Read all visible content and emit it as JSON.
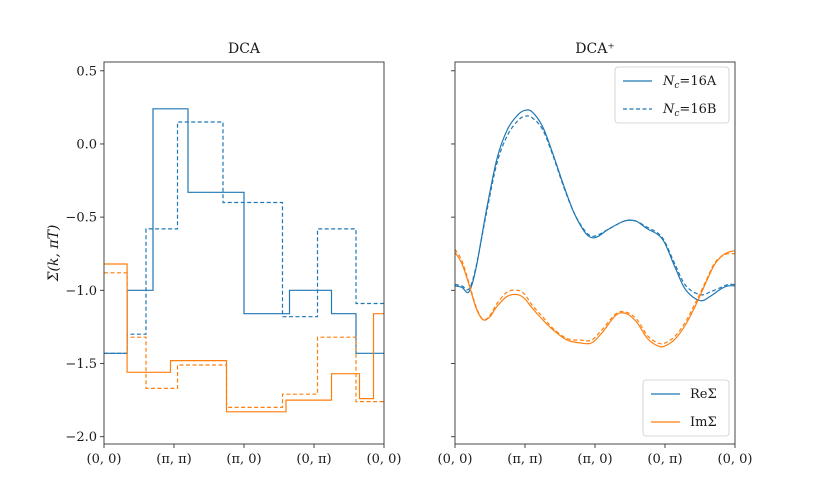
{
  "chart_data": [
    {
      "type": "line",
      "title": "DCA",
      "ylabel": "Σ(k, πT)",
      "xlabel": "",
      "x_ticks": [
        "(0, 0)",
        "(π, π)",
        "(π, 0)",
        "(0, π)",
        "(0, 0)"
      ],
      "x_tick_positions": [
        0,
        1,
        2,
        3,
        4
      ],
      "y_ticks": [
        "0.5",
        "0.0",
        "−0.5",
        "−1.0",
        "−1.5",
        "−2.0"
      ],
      "y_tick_values": [
        0.5,
        0.0,
        -0.5,
        -1.0,
        -1.5,
        -2.0
      ],
      "xlim": [
        0,
        4
      ],
      "ylim": [
        -2.05,
        0.56
      ],
      "grid": false,
      "series": [
        {
          "group": "ReΣ",
          "style": "solid",
          "color": "#1f77b4",
          "step": true,
          "x": [
            0,
            0.33,
            0.33,
            0.7,
            0.7,
            1.2,
            1.2,
            2.0,
            2.0,
            2.65,
            2.65,
            3.25,
            3.25,
            3.6,
            3.6,
            4.0
          ],
          "y": [
            -1.43,
            -1.43,
            -1.0,
            -1.0,
            0.24,
            0.24,
            -0.33,
            -0.33,
            -1.16,
            -1.16,
            -1.0,
            -1.0,
            -1.16,
            -1.16,
            -1.43,
            -1.43
          ]
        },
        {
          "group": "ReΣ",
          "style": "dashed",
          "color": "#1f77b4",
          "step": true,
          "x": [
            0,
            0.33,
            0.33,
            0.6,
            0.6,
            1.05,
            1.05,
            1.7,
            1.7,
            2.55,
            2.55,
            3.05,
            3.05,
            3.6,
            3.6,
            4.0
          ],
          "y": [
            -1.43,
            -1.43,
            -1.3,
            -1.3,
            -0.58,
            -0.58,
            0.15,
            0.15,
            -0.4,
            -0.4,
            -1.18,
            -1.18,
            -0.58,
            -0.58,
            -1.09,
            -1.09
          ]
        },
        {
          "group": "ImΣ",
          "style": "solid",
          "color": "#ff7f0e",
          "step": true,
          "x": [
            0,
            0.33,
            0.33,
            0.95,
            0.95,
            1.75,
            1.75,
            2.6,
            2.6,
            3.25,
            3.25,
            3.65,
            3.65,
            3.85,
            3.85,
            4.0
          ],
          "y": [
            -0.82,
            -0.82,
            -1.56,
            -1.56,
            -1.48,
            -1.48,
            -1.83,
            -1.83,
            -1.75,
            -1.75,
            -1.57,
            -1.57,
            -1.74,
            -1.74,
            -1.16,
            -1.16
          ]
        },
        {
          "group": "ImΣ",
          "style": "dashed",
          "color": "#ff7f0e",
          "step": true,
          "x": [
            0,
            0.33,
            0.33,
            0.6,
            0.6,
            1.05,
            1.05,
            1.75,
            1.75,
            2.55,
            2.55,
            3.05,
            3.05,
            3.6,
            3.6,
            4.0
          ],
          "y": [
            -0.88,
            -0.88,
            -1.32,
            -1.32,
            -1.67,
            -1.67,
            -1.51,
            -1.51,
            -1.8,
            -1.8,
            -1.71,
            -1.71,
            -1.32,
            -1.32,
            -1.76,
            -1.76
          ]
        }
      ]
    },
    {
      "type": "line",
      "title": "DCA⁺",
      "xlabel": "",
      "ylabel": "",
      "x_ticks": [
        "(0, 0)",
        "(π, π)",
        "(π, 0)",
        "(0, π)",
        "(0, 0)"
      ],
      "x_tick_positions": [
        0,
        1,
        2,
        3,
        4
      ],
      "xlim": [
        0,
        4
      ],
      "ylim": [
        -2.05,
        0.56
      ],
      "grid": false,
      "legends": [
        {
          "position": "upper-right",
          "entries": [
            {
              "label_main": "N",
              "label_sub": "c",
              "label_rest": "=16A",
              "style": "solid",
              "color": "#1f77b4"
            },
            {
              "label_main": "N",
              "label_sub": "c",
              "label_rest": "=16B",
              "style": "dashed",
              "color": "#1f77b4"
            }
          ]
        },
        {
          "position": "lower-right",
          "entries": [
            {
              "label": "ReΣ",
              "style": "solid",
              "color": "#1f77b4"
            },
            {
              "label": "ImΣ",
              "style": "solid",
              "color": "#ff7f0e"
            }
          ]
        }
      ],
      "series": [
        {
          "group": "ReΣ",
          "style": "solid",
          "color": "#1f77b4",
          "x": [
            0,
            0.1,
            0.2,
            0.3,
            0.45,
            0.6,
            0.75,
            0.9,
            1.0,
            1.1,
            1.25,
            1.4,
            1.55,
            1.7,
            1.85,
            1.95,
            2.05,
            2.2,
            2.4,
            2.5,
            2.6,
            2.75,
            2.9,
            3.0,
            3.15,
            3.3,
            3.5,
            3.65,
            3.8,
            3.9,
            4.0
          ],
          "y": [
            -0.97,
            -0.98,
            -1.01,
            -0.85,
            -0.45,
            -0.1,
            0.1,
            0.2,
            0.23,
            0.22,
            0.12,
            -0.07,
            -0.28,
            -0.47,
            -0.6,
            -0.64,
            -0.63,
            -0.58,
            -0.53,
            -0.52,
            -0.53,
            -0.58,
            -0.62,
            -0.68,
            -0.85,
            -1.0,
            -1.07,
            -1.04,
            -0.99,
            -0.97,
            -0.97
          ]
        },
        {
          "group": "ReΣ",
          "style": "dashed",
          "color": "#1f77b4",
          "x": [
            0,
            0.1,
            0.2,
            0.3,
            0.45,
            0.6,
            0.75,
            0.9,
            1.0,
            1.1,
            1.25,
            1.4,
            1.55,
            1.7,
            1.85,
            1.95,
            2.05,
            2.2,
            2.4,
            2.5,
            2.6,
            2.75,
            2.9,
            3.0,
            3.15,
            3.3,
            3.5,
            3.65,
            3.8,
            3.9,
            4.0
          ],
          "y": [
            -0.96,
            -0.97,
            -0.99,
            -0.84,
            -0.47,
            -0.13,
            0.06,
            0.16,
            0.19,
            0.18,
            0.1,
            -0.08,
            -0.29,
            -0.47,
            -0.59,
            -0.63,
            -0.62,
            -0.58,
            -0.53,
            -0.52,
            -0.53,
            -0.57,
            -0.61,
            -0.67,
            -0.83,
            -0.97,
            -1.03,
            -1.01,
            -0.98,
            -0.96,
            -0.96
          ]
        },
        {
          "group": "ImΣ",
          "style": "solid",
          "color": "#ff7f0e",
          "x": [
            0,
            0.1,
            0.2,
            0.3,
            0.4,
            0.5,
            0.6,
            0.75,
            0.9,
            1.0,
            1.1,
            1.25,
            1.4,
            1.6,
            1.8,
            1.95,
            2.1,
            2.3,
            2.45,
            2.6,
            2.75,
            2.9,
            3.0,
            3.15,
            3.3,
            3.45,
            3.6,
            3.7,
            3.8,
            3.9,
            4.0
          ],
          "y": [
            -0.74,
            -0.82,
            -0.96,
            -1.12,
            -1.2,
            -1.18,
            -1.11,
            -1.04,
            -1.03,
            -1.06,
            -1.12,
            -1.2,
            -1.27,
            -1.34,
            -1.36,
            -1.36,
            -1.29,
            -1.17,
            -1.16,
            -1.22,
            -1.33,
            -1.38,
            -1.38,
            -1.33,
            -1.23,
            -1.09,
            -0.93,
            -0.83,
            -0.77,
            -0.74,
            -0.73
          ]
        },
        {
          "group": "ImΣ",
          "style": "dashed",
          "color": "#ff7f0e",
          "x": [
            0,
            0.1,
            0.2,
            0.3,
            0.4,
            0.5,
            0.6,
            0.75,
            0.9,
            1.0,
            1.1,
            1.25,
            1.4,
            1.6,
            1.8,
            1.95,
            2.1,
            2.3,
            2.45,
            2.6,
            2.75,
            2.9,
            3.0,
            3.15,
            3.3,
            3.45,
            3.6,
            3.7,
            3.8,
            3.9,
            4.0
          ],
          "y": [
            -0.72,
            -0.8,
            -0.95,
            -1.11,
            -1.2,
            -1.17,
            -1.09,
            -1.01,
            -1.0,
            -1.03,
            -1.1,
            -1.18,
            -1.26,
            -1.33,
            -1.34,
            -1.34,
            -1.27,
            -1.16,
            -1.15,
            -1.2,
            -1.31,
            -1.36,
            -1.36,
            -1.31,
            -1.21,
            -1.07,
            -0.92,
            -0.82,
            -0.77,
            -0.75,
            -0.75
          ]
        }
      ]
    }
  ]
}
